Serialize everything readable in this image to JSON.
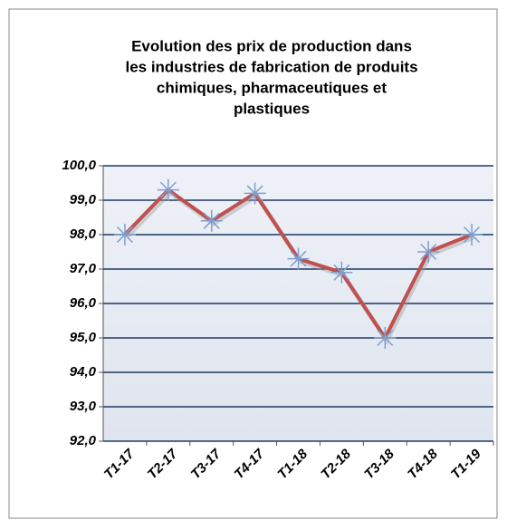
{
  "chart_data": {
    "type": "line",
    "title": [
      "Evolution  des prix de production  dans",
      "les industries de fabrication de produits",
      "chimiques, pharmaceutiques et",
      "plastiques"
    ],
    "categories": [
      "T1-17",
      "T2-17",
      "T3-17",
      "T4-17",
      "T1-18",
      "T2-18",
      "T3-18",
      "T4-18",
      "T1-19"
    ],
    "series": [
      {
        "name": "Prix de production",
        "color": "#c0504d",
        "marker_color": "#7f9fd0",
        "values": [
          98.0,
          99.3,
          98.4,
          99.2,
          97.3,
          96.9,
          95.0,
          97.5,
          98.0
        ]
      }
    ],
    "ylim": [
      92,
      100
    ],
    "yticks": [
      {
        "value": 92,
        "label": "92,0"
      },
      {
        "value": 93,
        "label": "93,0"
      },
      {
        "value": 94,
        "label": "94,0"
      },
      {
        "value": 95,
        "label": "95,0"
      },
      {
        "value": 96,
        "label": "96,0"
      },
      {
        "value": 97,
        "label": "97,0"
      },
      {
        "value": 98,
        "label": "98,0"
      },
      {
        "value": 99,
        "label": "99,0"
      },
      {
        "value": 100,
        "label": "100,0"
      }
    ],
    "grid": true,
    "legend": false
  }
}
